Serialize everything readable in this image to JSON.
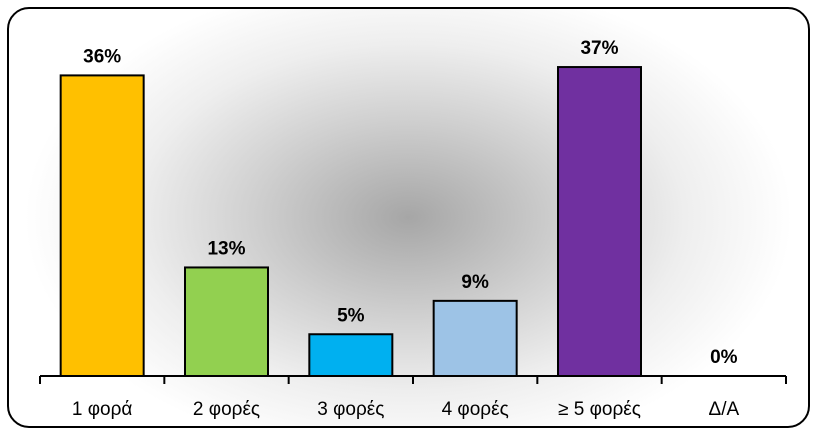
{
  "chart_data": {
    "type": "bar",
    "categories": [
      "1 φορά",
      "2 φορές",
      "3 φορές",
      "4 φορές",
      "≥ 5 φορές",
      "Δ/Α"
    ],
    "values": [
      36,
      13,
      5,
      9,
      37,
      0
    ],
    "data_labels": [
      "36%",
      "13%",
      "5%",
      "9%",
      "37%",
      "0%"
    ],
    "colors": [
      "#FFC000",
      "#92D050",
      "#00B0F0",
      "#9DC3E6",
      "#7030A0",
      "#7F7F7F"
    ],
    "title": "",
    "xlabel": "",
    "ylabel": "",
    "ylim": [
      0,
      40
    ],
    "grid": false,
    "legend": "none"
  }
}
